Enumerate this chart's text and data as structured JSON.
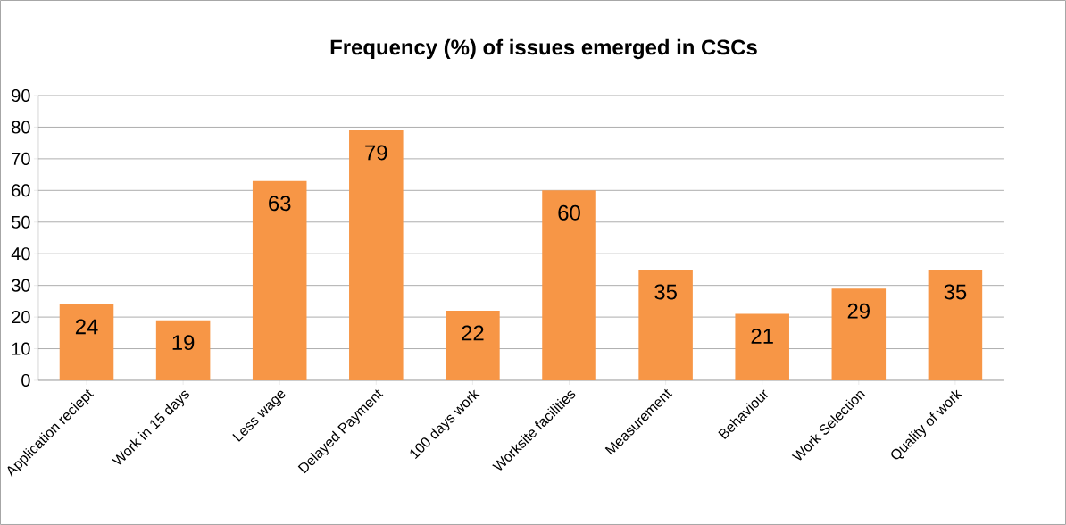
{
  "chart_data": {
    "type": "bar",
    "title": "Frequency (%) of issues emerged in CSCs",
    "categories": [
      "Application reciept",
      "Work in 15 days",
      "Less wage",
      "Delayed Payment",
      "100 days work",
      "Worksite facilities",
      "Measurement",
      "Behaviour",
      "Work Selection",
      "Quality of work"
    ],
    "values": [
      24,
      19,
      63,
      79,
      22,
      60,
      35,
      21,
      29,
      35
    ],
    "color": "#f79646",
    "ylim": [
      0,
      90
    ],
    "yticks": [
      0,
      10,
      20,
      30,
      40,
      50,
      60,
      70,
      80,
      90
    ],
    "grid": "y",
    "data_labels": true
  }
}
